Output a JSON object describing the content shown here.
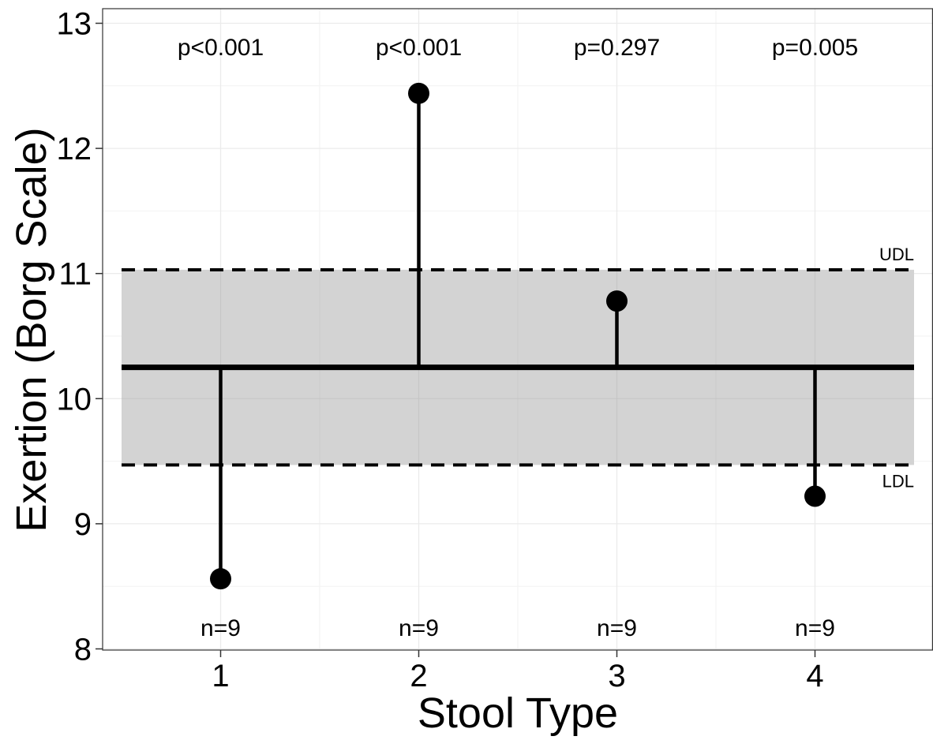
{
  "chart_data": {
    "type": "scatter",
    "subtype": "analysis-of-means lollipop",
    "xlabel": "Stool Type",
    "ylabel": "Exertion (Borg Scale)",
    "categories": [
      "1",
      "2",
      "3",
      "4"
    ],
    "values": [
      8.56,
      12.44,
      10.78,
      9.22
    ],
    "center_line": 10.25,
    "upper_limit": {
      "label": "UDL",
      "value": 11.03
    },
    "lower_limit": {
      "label": "LDL",
      "value": 9.47
    },
    "p_values": [
      "p<0.001",
      "p<0.001",
      "p=0.297",
      "p=0.005"
    ],
    "n_labels": [
      "n=9",
      "n=9",
      "n=9",
      "n=9"
    ],
    "ylim": [
      8,
      13
    ],
    "xlim": [
      0.5,
      4.5
    ],
    "y_ticks": [
      "8",
      "9",
      "10",
      "11",
      "12",
      "13"
    ],
    "grid": true,
    "shaded_band_color": "#d3d3d3",
    "line_color": "#000000",
    "grid_color": "#ebebeb"
  }
}
